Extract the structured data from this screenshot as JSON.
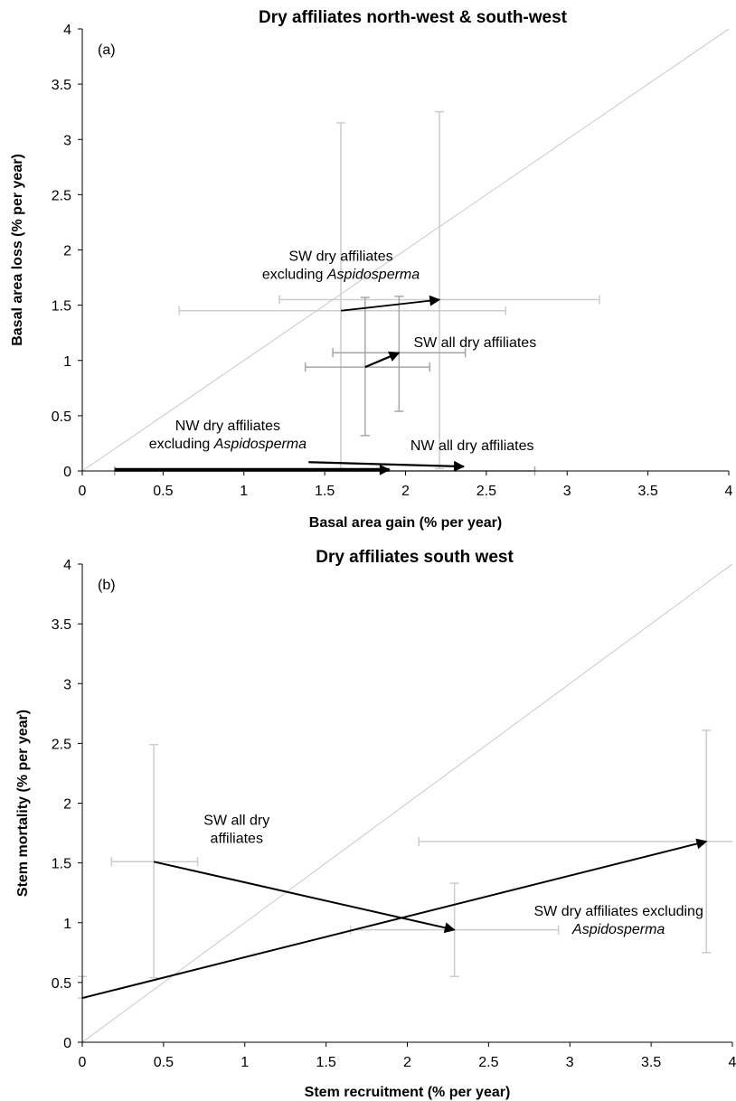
{
  "chart_data": [
    {
      "type": "scatter",
      "panel_label": "(a)",
      "title": "Dry affiliates north-west & south-west",
      "xlabel": "Basal area gain (% per year)",
      "ylabel": "Basal area loss (% per year)",
      "xlim": [
        0,
        4
      ],
      "ylim": [
        0,
        4
      ],
      "xticks": [
        "0",
        "0.5",
        "1",
        "1.5",
        "2",
        "2.5",
        "3",
        "3.5",
        "4"
      ],
      "yticks": [
        "0",
        "0.5",
        "1",
        "1.5",
        "2",
        "2.5",
        "3",
        "3.5",
        "4"
      ],
      "diagonal": true,
      "error_bars": [
        {
          "x": 1.6,
          "y": 1.45,
          "xerr": [
            0.6,
            2.62
          ],
          "yerr": [
            0.02,
            3.15
          ],
          "shade": "light"
        },
        {
          "x": 2.21,
          "y": 1.55,
          "xerr": [
            1.22,
            3.2
          ],
          "yerr": [
            0.02,
            3.25
          ],
          "shade": "light"
        },
        {
          "x": 1.75,
          "y": 0.94,
          "xerr": [
            1.38,
            2.15
          ],
          "yerr": [
            0.32,
            1.57
          ],
          "shade": "medium"
        },
        {
          "x": 1.96,
          "y": 1.07,
          "xerr": [
            1.55,
            2.37
          ],
          "yerr": [
            0.54,
            1.58
          ],
          "shade": "medium"
        },
        {
          "x": 1.4,
          "y": 0.0,
          "xerr": [
            0.2,
            2.8
          ],
          "yerr": [
            0.0,
            0.0
          ],
          "shade": "medium"
        }
      ],
      "arrows": [
        {
          "from": [
            1.6,
            1.45
          ],
          "to": [
            2.21,
            1.55
          ],
          "width": 1.8
        },
        {
          "from": [
            1.75,
            0.94
          ],
          "to": [
            1.96,
            1.07
          ],
          "width": 2.2
        },
        {
          "from": [
            1.4,
            0.08
          ],
          "to": [
            2.36,
            0.04
          ],
          "width": 2.2
        },
        {
          "from": [
            0.2,
            0.01
          ],
          "to": [
            1.9,
            0.01
          ],
          "width": 4
        }
      ],
      "annotations": [
        {
          "lines": [
            [
              {
                "t": "SW dry affiliates"
              }
            ],
            [
              {
                "t": "excluding "
              },
              {
                "t": "Aspidosperma",
                "i": true
              }
            ]
          ],
          "x": 1.6,
          "y": 1.9,
          "anchor": "middle"
        },
        {
          "lines": [
            [
              {
                "t": "SW all dry affiliates"
              }
            ]
          ],
          "x": 2.05,
          "y": 1.12,
          "anchor": "start"
        },
        {
          "lines": [
            [
              {
                "t": "NW dry affiliates"
              }
            ],
            [
              {
                "t": "excluding "
              },
              {
                "t": "Aspidosperma",
                "i": true
              }
            ]
          ],
          "x": 0.9,
          "y": 0.37,
          "anchor": "middle"
        },
        {
          "lines": [
            [
              {
                "t": "NW all dry affiliates"
              }
            ]
          ],
          "x": 2.03,
          "y": 0.19,
          "anchor": "start"
        }
      ]
    },
    {
      "type": "scatter",
      "panel_label": "(b)",
      "title": "Dry affiliates south west",
      "xlabel": "Stem recruitment (% per year)",
      "ylabel": "Stem mortality (% per year)",
      "xlim": [
        0,
        4
      ],
      "ylim": [
        0,
        4
      ],
      "xticks": [
        "0",
        "0.5",
        "1",
        "1.5",
        "2",
        "2.5",
        "3",
        "3.5",
        "4"
      ],
      "yticks": [
        "0",
        "0.5",
        "1",
        "1.5",
        "2",
        "2.5",
        "3",
        "3.5",
        "4"
      ],
      "diagonal": true,
      "error_bars": [
        {
          "x": 0.44,
          "y": 1.51,
          "xerr": [
            0.18,
            0.71
          ],
          "yerr": [
            0.54,
            2.49
          ],
          "shade": "light"
        },
        {
          "x": 2.29,
          "y": 0.94,
          "xerr": [
            1.65,
            2.93
          ],
          "yerr": [
            0.55,
            1.33
          ],
          "shade": "light"
        },
        {
          "x": 3.84,
          "y": 1.68,
          "xerr": [
            2.07,
            4.0
          ],
          "yerr": [
            0.75,
            2.61
          ],
          "shade": "light"
        },
        {
          "x": 0.0,
          "y": 0.37,
          "xerr": [
            0.0,
            0.0
          ],
          "yerr": [
            0.37,
            0.55
          ],
          "shade": "light"
        }
      ],
      "arrows": [
        {
          "from": [
            0.44,
            1.51
          ],
          "to": [
            2.29,
            0.94
          ],
          "width": 2
        },
        {
          "from": [
            0.0,
            0.37
          ],
          "to": [
            3.84,
            1.68
          ],
          "width": 2
        }
      ],
      "annotations": [
        {
          "lines": [
            [
              {
                "t": "SW all dry"
              }
            ],
            [
              {
                "t": "affiliates"
              }
            ]
          ],
          "x": 0.95,
          "y": 1.82,
          "anchor": "middle"
        },
        {
          "lines": [
            [
              {
                "t": "SW dry affiliates excluding"
              }
            ],
            [
              {
                "t": "Aspidosperma",
                "i": true
              }
            ]
          ],
          "x": 3.3,
          "y": 1.06,
          "anchor": "middle"
        }
      ]
    }
  ]
}
